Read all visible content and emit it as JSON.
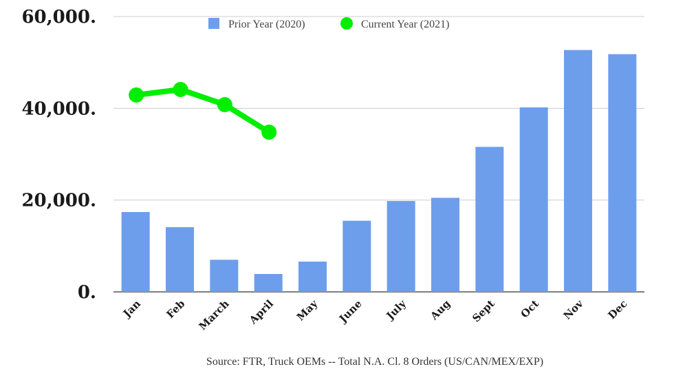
{
  "chart_data": {
    "type": "bar",
    "title": "",
    "xlabel": "",
    "ylabel": "",
    "ylim": [
      0,
      60000
    ],
    "yticks": [
      {
        "value": 0,
        "label": "0."
      },
      {
        "value": 20000,
        "label": "20,000."
      },
      {
        "value": 40000,
        "label": "40,000."
      },
      {
        "value": 60000,
        "label": "60,000."
      }
    ],
    "grid": true,
    "legend_position": "top-center",
    "categories": [
      "Jan",
      "Feb",
      "March",
      "April",
      "May",
      "June",
      "July",
      "Aug",
      "Sept",
      "Oct",
      "Nov",
      "Dec"
    ],
    "series": [
      {
        "name": "Prior Year (2020)",
        "kind": "bar",
        "color": "#6d9eeb",
        "values": [
          17400,
          14100,
          7000,
          3900,
          6600,
          15500,
          19800,
          20500,
          31600,
          40200,
          52700,
          51800
        ]
      },
      {
        "name": "Current Year (2021)",
        "kind": "line",
        "color": "#00ee00",
        "values": [
          42900,
          44100,
          40800,
          34800,
          null,
          null,
          null,
          null,
          null,
          null,
          null,
          null
        ]
      }
    ],
    "source": "Source: FTR, Truck OEMs -- Total N.A. Cl. 8 Orders (US/CAN/MEX/EXP)"
  }
}
